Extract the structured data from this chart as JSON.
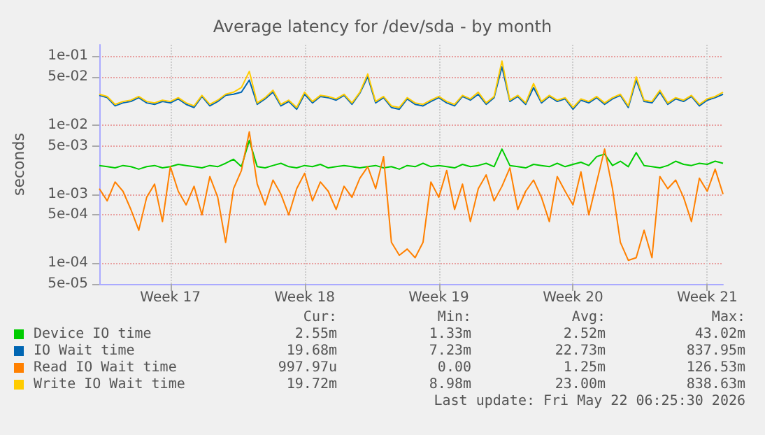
{
  "chart_data": {
    "type": "line",
    "title": "Average latency for /dev/sda - by month",
    "ylabel": "seconds",
    "log": "y",
    "grid": true,
    "legend": "bottom",
    "marker": "none",
    "line_style": "solid",
    "categories": [
      null,
      null,
      null,
      null,
      null,
      null,
      null,
      null,
      null,
      "Week 17",
      null,
      null,
      null,
      null,
      null,
      null,
      null,
      null,
      null,
      null,
      null,
      null,
      null,
      null,
      null,
      null,
      "Week 18",
      null,
      null,
      null,
      null,
      null,
      null,
      null,
      null,
      null,
      null,
      null,
      null,
      null,
      null,
      null,
      null,
      "Week 19",
      null,
      null,
      null,
      null,
      null,
      null,
      null,
      null,
      null,
      null,
      null,
      null,
      null,
      null,
      null,
      null,
      "Week 20",
      null,
      null,
      null,
      null,
      null,
      null,
      null,
      null,
      null,
      null,
      null,
      null,
      null,
      null,
      null,
      null,
      "Week 21",
      null,
      null
    ],
    "ylim": [
      5e-05,
      0.146
    ],
    "yticks": [
      {
        "value": 5e-05,
        "label": "5e-05"
      },
      {
        "value": 0.0001,
        "label": "1e-04"
      },
      {
        "value": 0.0005,
        "label": "5e-04"
      },
      {
        "value": 0.001,
        "label": "1e-03"
      },
      {
        "value": 0.005,
        "label": "5e-03"
      },
      {
        "value": 0.01,
        "label": "1e-02"
      },
      {
        "value": 0.05,
        "label": "5e-02"
      },
      {
        "value": 0.1,
        "label": "1e-01"
      }
    ],
    "series": [
      {
        "name": "Device IO time",
        "color": "#00cc00",
        "values": [
          0.0026,
          0.0025,
          0.0024,
          0.0026,
          0.0025,
          0.0023,
          0.0025,
          0.0026,
          0.0024,
          0.0025,
          0.0027,
          0.0026,
          0.0025,
          0.0024,
          0.0026,
          0.0025,
          0.0028,
          0.0032,
          0.0025,
          0.006,
          0.0025,
          0.0024,
          0.0026,
          0.0028,
          0.0025,
          0.0024,
          0.0026,
          0.0025,
          0.0027,
          0.0024,
          0.0025,
          0.0026,
          0.0025,
          0.0024,
          0.0025,
          0.0026,
          0.0024,
          0.0025,
          0.0023,
          0.0026,
          0.0025,
          0.0028,
          0.0025,
          0.0026,
          0.0025,
          0.0024,
          0.0027,
          0.0025,
          0.0026,
          0.0028,
          0.0025,
          0.0045,
          0.0026,
          0.0025,
          0.0024,
          0.0027,
          0.0026,
          0.0025,
          0.0028,
          0.0025,
          0.0027,
          0.0029,
          0.0026,
          0.0035,
          0.0038,
          0.0026,
          0.003,
          0.0025,
          0.004,
          0.0026,
          0.0025,
          0.0024,
          0.0026,
          0.003,
          0.0027,
          0.0026,
          0.0028,
          0.0027,
          0.003,
          0.0028
        ]
      },
      {
        "name": "IO Wait time",
        "color": "#0066b3",
        "values": [
          0.027,
          0.025,
          0.019,
          0.021,
          0.022,
          0.025,
          0.021,
          0.02,
          0.022,
          0.021,
          0.024,
          0.02,
          0.018,
          0.026,
          0.019,
          0.022,
          0.027,
          0.028,
          0.03,
          0.045,
          0.02,
          0.024,
          0.03,
          0.019,
          0.022,
          0.017,
          0.028,
          0.021,
          0.026,
          0.025,
          0.023,
          0.027,
          0.02,
          0.029,
          0.05,
          0.021,
          0.025,
          0.018,
          0.017,
          0.024,
          0.02,
          0.019,
          0.022,
          0.025,
          0.021,
          0.019,
          0.026,
          0.023,
          0.028,
          0.02,
          0.025,
          0.07,
          0.022,
          0.026,
          0.02,
          0.035,
          0.021,
          0.026,
          0.022,
          0.024,
          0.017,
          0.023,
          0.021,
          0.025,
          0.02,
          0.024,
          0.027,
          0.018,
          0.045,
          0.022,
          0.021,
          0.03,
          0.02,
          0.024,
          0.022,
          0.026,
          0.019,
          0.023,
          0.025,
          0.028
        ]
      },
      {
        "name": "Read IO Wait time",
        "color": "#ff8000",
        "values": [
          0.0012,
          0.0008,
          0.0015,
          0.0011,
          0.0006,
          0.0003,
          0.0009,
          0.0014,
          0.0004,
          0.0025,
          0.0011,
          0.0007,
          0.0013,
          0.0005,
          0.0018,
          0.0009,
          0.0002,
          0.0012,
          0.0022,
          0.008,
          0.0014,
          0.0007,
          0.0016,
          0.001,
          0.0005,
          0.0012,
          0.002,
          0.0008,
          0.0015,
          0.0011,
          0.0006,
          0.0013,
          0.0009,
          0.0017,
          0.0025,
          0.0012,
          0.0035,
          0.0002,
          0.00013,
          0.00016,
          0.00012,
          0.0002,
          0.0015,
          0.0009,
          0.0022,
          0.0006,
          0.0014,
          0.0004,
          0.0012,
          0.0019,
          0.0008,
          0.0013,
          0.0024,
          0.0006,
          0.0011,
          0.0016,
          0.0009,
          0.0004,
          0.0018,
          0.0011,
          0.0007,
          0.0021,
          0.0005,
          0.0015,
          0.0045,
          0.0012,
          0.0002,
          0.00011,
          0.00012,
          0.0003,
          0.00012,
          0.0018,
          0.0012,
          0.0016,
          0.0009,
          0.0004,
          0.0017,
          0.0011,
          0.0023,
          0.001
        ]
      },
      {
        "name": "Write IO Wait time",
        "color": "#ffcc00",
        "values": [
          0.028,
          0.026,
          0.02,
          0.022,
          0.023,
          0.026,
          0.022,
          0.021,
          0.023,
          0.022,
          0.025,
          0.021,
          0.019,
          0.027,
          0.02,
          0.023,
          0.028,
          0.03,
          0.035,
          0.06,
          0.021,
          0.025,
          0.032,
          0.02,
          0.023,
          0.018,
          0.03,
          0.022,
          0.027,
          0.026,
          0.024,
          0.028,
          0.021,
          0.03,
          0.055,
          0.022,
          0.026,
          0.019,
          0.018,
          0.025,
          0.021,
          0.02,
          0.023,
          0.026,
          0.022,
          0.02,
          0.027,
          0.024,
          0.03,
          0.021,
          0.026,
          0.085,
          0.023,
          0.027,
          0.021,
          0.04,
          0.022,
          0.027,
          0.023,
          0.025,
          0.018,
          0.024,
          0.022,
          0.026,
          0.021,
          0.025,
          0.028,
          0.019,
          0.05,
          0.023,
          0.022,
          0.032,
          0.021,
          0.025,
          0.023,
          0.027,
          0.02,
          0.024,
          0.026,
          0.03
        ]
      }
    ],
    "annotations": [
      "Cur:",
      "Min:",
      "Avg:",
      "Max:",
      "2.55m",
      "1.33m",
      "2.52m",
      "43.02m",
      "19.68m",
      "7.23m",
      "22.73m",
      "837.95m",
      "997.97u",
      "0.00",
      "1.25m",
      "126.53m",
      "19.72m",
      "8.98m",
      "23.00m",
      "838.63m",
      "Last update: Fri May 22 06:25:30 2026"
    ]
  }
}
